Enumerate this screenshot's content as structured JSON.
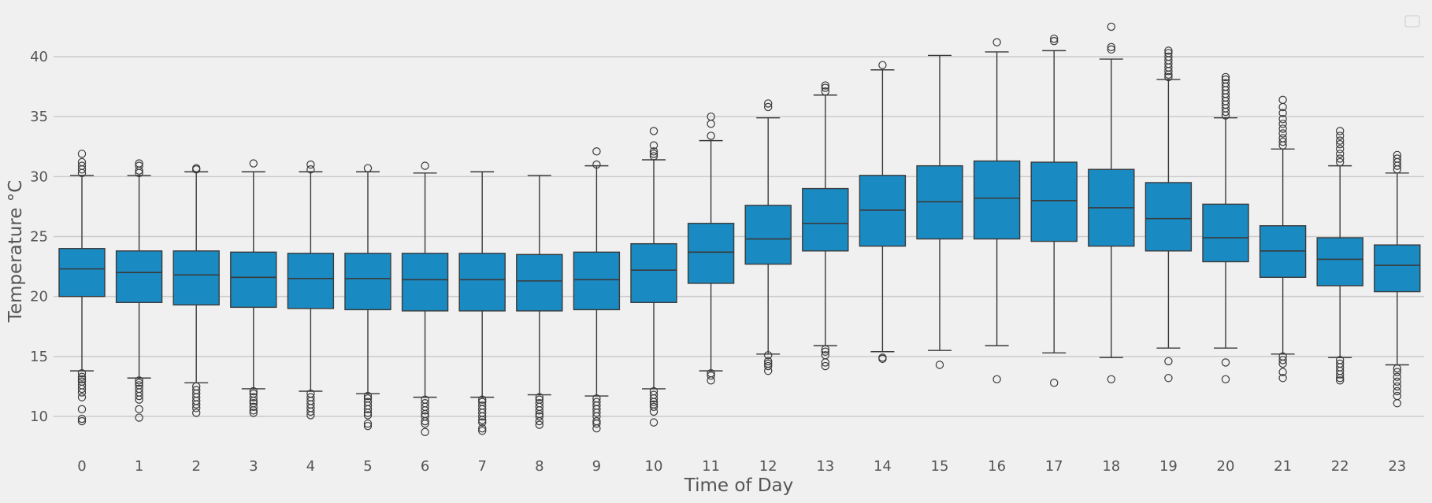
{
  "chart_data": {
    "type": "box",
    "xlabel": "Time of Day",
    "ylabel": "Temperature °C",
    "ylim": [
      8,
      44
    ],
    "yticks": [
      10,
      15,
      20,
      25,
      30,
      35,
      40
    ],
    "grid": "horizontal",
    "legend": "empty box at top-right",
    "box_color": "#1a8ac3",
    "line_color": "#3a3a3a",
    "categories": [
      "0",
      "1",
      "2",
      "3",
      "4",
      "5",
      "6",
      "7",
      "8",
      "9",
      "10",
      "11",
      "12",
      "13",
      "14",
      "15",
      "16",
      "17",
      "18",
      "19",
      "20",
      "21",
      "22",
      "23"
    ],
    "boxes": [
      {
        "q1": 20.0,
        "median": 22.3,
        "q3": 24.0,
        "whislo": 13.8,
        "whishi": 30.1,
        "fliers": [
          13.6,
          13.3,
          13.1,
          12.9,
          12.6,
          12.3,
          12.0,
          11.6,
          10.6,
          9.8,
          9.6,
          30.3,
          30.6,
          30.9,
          31.2,
          31.9
        ]
      },
      {
        "q1": 19.5,
        "median": 22.0,
        "q3": 23.8,
        "whislo": 13.2,
        "whishi": 30.1,
        "fliers": [
          13.0,
          12.8,
          12.6,
          12.3,
          12.0,
          11.7,
          11.4,
          10.6,
          9.9,
          30.3,
          30.5,
          30.9,
          31.1
        ]
      },
      {
        "q1": 19.3,
        "median": 21.8,
        "q3": 23.8,
        "whislo": 12.8,
        "whishi": 30.4,
        "fliers": [
          12.5,
          12.2,
          11.9,
          11.6,
          11.3,
          11.0,
          10.7,
          10.3,
          30.6,
          30.7
        ]
      },
      {
        "q1": 19.1,
        "median": 21.6,
        "q3": 23.7,
        "whislo": 12.3,
        "whishi": 30.4,
        "fliers": [
          12.1,
          11.9,
          11.6,
          11.3,
          11.1,
          10.8,
          10.5,
          10.3,
          31.1
        ]
      },
      {
        "q1": 19.0,
        "median": 21.5,
        "q3": 23.6,
        "whislo": 12.1,
        "whishi": 30.4,
        "fliers": [
          11.9,
          11.6,
          11.3,
          11.0,
          10.7,
          10.4,
          10.1,
          30.6,
          31.0
        ]
      },
      {
        "q1": 18.9,
        "median": 21.5,
        "q3": 23.6,
        "whislo": 11.9,
        "whishi": 30.4,
        "fliers": [
          11.7,
          11.5,
          11.2,
          10.9,
          10.6,
          10.3,
          10.1,
          9.4,
          9.2,
          30.7
        ]
      },
      {
        "q1": 18.8,
        "median": 21.4,
        "q3": 23.6,
        "whislo": 11.6,
        "whishi": 30.3,
        "fliers": [
          11.4,
          11.1,
          10.8,
          10.5,
          10.2,
          10.0,
          9.6,
          9.4,
          8.7,
          30.9
        ]
      },
      {
        "q1": 18.8,
        "median": 21.4,
        "q3": 23.6,
        "whislo": 11.6,
        "whishi": 30.4,
        "fliers": [
          11.4,
          11.2,
          10.9,
          10.6,
          10.3,
          10.0,
          9.7,
          9.5,
          9.0,
          8.8
        ]
      },
      {
        "q1": 18.8,
        "median": 21.3,
        "q3": 23.5,
        "whislo": 11.8,
        "whishi": 30.1,
        "fliers": [
          11.6,
          11.4,
          11.1,
          10.8,
          10.5,
          10.2,
          10.0,
          9.6,
          9.3
        ]
      },
      {
        "q1": 18.9,
        "median": 21.4,
        "q3": 23.7,
        "whislo": 11.7,
        "whishi": 30.9,
        "fliers": [
          11.5,
          11.2,
          10.9,
          10.6,
          10.3,
          10.0,
          9.6,
          9.4,
          9.0,
          31.0,
          32.1
        ]
      },
      {
        "q1": 19.5,
        "median": 22.2,
        "q3": 24.4,
        "whislo": 12.3,
        "whishi": 31.4,
        "fliers": [
          12.1,
          11.8,
          11.5,
          11.2,
          11.0,
          10.8,
          10.4,
          9.5,
          31.7,
          31.9,
          32.1,
          32.6,
          33.8
        ]
      },
      {
        "q1": 21.1,
        "median": 23.7,
        "q3": 26.1,
        "whislo": 13.8,
        "whishi": 33.0,
        "fliers": [
          13.6,
          13.4,
          13.0,
          33.4,
          34.4,
          35.0
        ]
      },
      {
        "q1": 22.7,
        "median": 24.8,
        "q3": 27.6,
        "whislo": 15.2,
        "whishi": 34.9,
        "fliers": [
          14.6,
          14.4,
          14.2,
          13.8,
          15.1,
          35.8,
          36.1
        ]
      },
      {
        "q1": 23.8,
        "median": 26.1,
        "q3": 29.0,
        "whislo": 15.9,
        "whishi": 36.8,
        "fliers": [
          15.6,
          15.4,
          15.1,
          14.5,
          14.2,
          37.1,
          37.4,
          37.6
        ]
      },
      {
        "q1": 24.2,
        "median": 27.2,
        "q3": 30.1,
        "whislo": 15.4,
        "whishi": 38.9,
        "fliers": [
          14.9,
          14.8,
          39.3
        ]
      },
      {
        "q1": 24.8,
        "median": 27.9,
        "q3": 30.9,
        "whislo": 15.5,
        "whishi": 40.1,
        "fliers": [
          14.3
        ]
      },
      {
        "q1": 24.8,
        "median": 28.2,
        "q3": 31.3,
        "whislo": 15.9,
        "whishi": 40.4,
        "fliers": [
          13.1,
          41.2
        ]
      },
      {
        "q1": 24.6,
        "median": 28.0,
        "q3": 31.2,
        "whislo": 15.3,
        "whishi": 40.5,
        "fliers": [
          12.8,
          41.3,
          41.5
        ]
      },
      {
        "q1": 24.2,
        "median": 27.4,
        "q3": 30.6,
        "whislo": 14.9,
        "whishi": 39.8,
        "fliers": [
          13.1,
          40.6,
          40.8,
          42.5
        ]
      },
      {
        "q1": 23.8,
        "median": 26.5,
        "q3": 29.5,
        "whislo": 15.7,
        "whishi": 38.1,
        "fliers": [
          14.6,
          13.2,
          38.3,
          38.5,
          38.8,
          39.1,
          39.4,
          39.7,
          40.0,
          40.3,
          40.5
        ]
      },
      {
        "q1": 22.9,
        "median": 24.9,
        "q3": 27.7,
        "whislo": 15.7,
        "whishi": 34.9,
        "fliers": [
          14.5,
          13.1,
          35.1,
          35.4,
          35.7,
          36.0,
          36.3,
          36.6,
          36.9,
          37.2,
          37.5,
          37.8,
          38.1,
          38.3
        ]
      },
      {
        "q1": 21.6,
        "median": 23.8,
        "q3": 25.9,
        "whislo": 15.2,
        "whishi": 32.3,
        "fliers": [
          15.0,
          14.7,
          14.4,
          13.7,
          13.2,
          32.6,
          32.9,
          33.2,
          33.6,
          34.0,
          34.4,
          34.8,
          35.3,
          35.8,
          36.4
        ]
      },
      {
        "q1": 20.9,
        "median": 23.1,
        "q3": 24.9,
        "whislo": 14.9,
        "whishi": 30.9,
        "fliers": [
          14.7,
          14.4,
          14.1,
          13.8,
          13.5,
          13.2,
          13.0,
          31.2,
          31.5,
          31.9,
          32.3,
          32.7,
          33.0,
          33.4,
          33.8
        ]
      },
      {
        "q1": 20.4,
        "median": 22.6,
        "q3": 24.3,
        "whislo": 14.3,
        "whishi": 30.3,
        "fliers": [
          14.0,
          13.7,
          13.3,
          12.9,
          12.5,
          12.1,
          11.7,
          11.1,
          30.6,
          30.9,
          31.2,
          31.5,
          31.8
        ]
      }
    ]
  }
}
